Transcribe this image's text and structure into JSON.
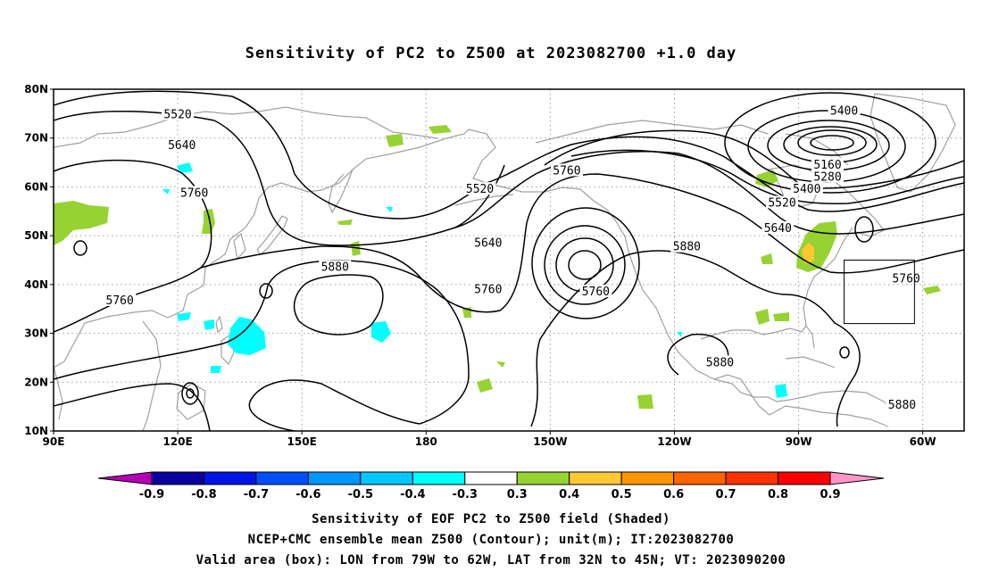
{
  "title": "Sensitivity of PC2 to Z500 at 2023082700 +1.0 day",
  "lat_labels": [
    "80N",
    "70N",
    "60N",
    "50N",
    "40N",
    "30N",
    "20N",
    "10N"
  ],
  "lon_labels": [
    "90E",
    "120E",
    "150E",
    "180",
    "150W",
    "120W",
    "90W",
    "60W"
  ],
  "contour_labels": [
    {
      "text": "5520",
      "lon": 120,
      "lat": 74.8
    },
    {
      "text": "5640",
      "lon": 121,
      "lat": 68.5
    },
    {
      "text": "5760",
      "lon": 124,
      "lat": 58.7
    },
    {
      "text": "5760",
      "lon": 106,
      "lat": 36.7
    },
    {
      "text": "5880",
      "lon": 158,
      "lat": 43.5
    },
    {
      "text": "5520",
      "lon": 193,
      "lat": 59.5
    },
    {
      "text": "5640",
      "lon": 195,
      "lat": 48.5
    },
    {
      "text": "5760",
      "lon": 195,
      "lat": 39.0
    },
    {
      "text": "5760",
      "lon": 214,
      "lat": 63.3
    },
    {
      "text": "5760",
      "lon": 221,
      "lat": 38.5
    },
    {
      "text": "5880",
      "lon": 243,
      "lat": 47.7
    },
    {
      "text": "5880",
      "lon": 251,
      "lat": 24.0
    },
    {
      "text": "5400",
      "lon": 281,
      "lat": 75.5
    },
    {
      "text": "5160",
      "lon": 277,
      "lat": 64.5
    },
    {
      "text": "5280",
      "lon": 277,
      "lat": 62.0
    },
    {
      "text": "5400",
      "lon": 272,
      "lat": 59.5
    },
    {
      "text": "5520",
      "lon": 266,
      "lat": 56.7
    },
    {
      "text": "5640",
      "lon": 265,
      "lat": 51.5
    },
    {
      "text": "5760",
      "lon": 296,
      "lat": 41.2
    },
    {
      "text": "5880",
      "lon": 295,
      "lat": 15.3
    }
  ],
  "valid_box": {
    "lon_min": 281,
    "lon_max": 298,
    "lat_min": 32,
    "lat_max": 45
  },
  "colorbar": {
    "colors": [
      "#b400b4",
      "#0a00a0",
      "#0014e6",
      "#0050ff",
      "#0096ff",
      "#00c8ff",
      "#00ffff",
      "#ffffff",
      "#96d232",
      "#ffc832",
      "#ff9600",
      "#ff6400",
      "#ff3200",
      "#ff0000",
      "#ff96c8"
    ],
    "labels": [
      "-0.9",
      "-0.8",
      "-0.7",
      "-0.6",
      "-0.5",
      "-0.4",
      "-0.3",
      "0.3",
      "0.4",
      "0.5",
      "0.6",
      "0.7",
      "0.8",
      "0.9"
    ]
  },
  "shading_colors": {
    "negative": "#00ffff",
    "positive": "#96d232",
    "strong_positive": "#ffc832"
  },
  "caption": {
    "line1": "Sensitivity of EOF PC2 to Z500 field (Shaded)",
    "line2": "NCEP+CMC ensemble mean Z500 (Contour); unit(m); IT:2023082700",
    "line3": "Valid area (box): LON from 79W to 62W, LAT from 32N to 45N; VT: 2023090200"
  }
}
